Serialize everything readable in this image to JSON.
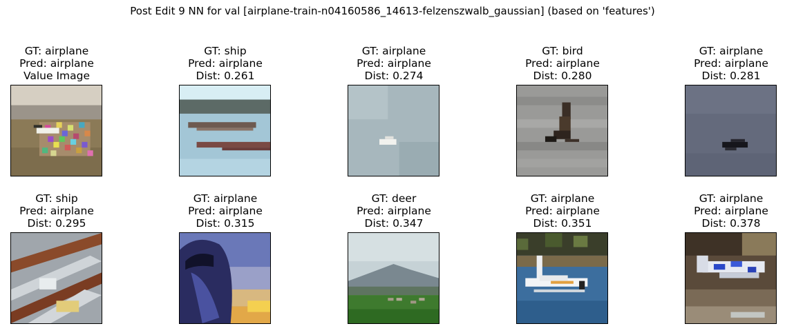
{
  "figure": {
    "title": "Post Edit 9 NN for val [airplane-train-n04160586_14613-felzenszwalb_gaussian] (based on 'features')"
  },
  "panels": [
    {
      "gt": "GT: airplane",
      "pred": "Pred: airplane",
      "extra": "Value Image",
      "image": "airplane-with-noisy-patch"
    },
    {
      "gt": "GT: ship",
      "pred": "Pred: airplane",
      "extra": "Dist: 0.261",
      "image": "boats-on-water"
    },
    {
      "gt": "GT: airplane",
      "pred": "Pred: airplane",
      "extra": "Dist: 0.274",
      "image": "plane-in-grey-sky"
    },
    {
      "gt": "GT: bird",
      "pred": "Pred: airplane",
      "extra": "Dist: 0.280",
      "image": "bird-flying"
    },
    {
      "gt": "GT: airplane",
      "pred": "Pred: airplane",
      "extra": "Dist: 0.281",
      "image": "plane-dark-sky"
    },
    {
      "gt": "GT: ship",
      "pred": "Pred: airplane",
      "extra": "Dist: 0.295",
      "image": "ship-deck"
    },
    {
      "gt": "GT: airplane",
      "pred": "Pred: airplane",
      "extra": "Dist: 0.315",
      "image": "plane-nose-sunset"
    },
    {
      "gt": "GT: deer",
      "pred": "Pred: airplane",
      "extra": "Dist: 0.347",
      "image": "deer-on-grass"
    },
    {
      "gt": "GT: airplane",
      "pred": "Pred: airplane",
      "extra": "Dist: 0.351",
      "image": "seaplane-on-water"
    },
    {
      "gt": "GT: airplane",
      "pred": "Pred: airplane",
      "extra": "Dist: 0.378",
      "image": "small-plane-on-ground"
    }
  ]
}
